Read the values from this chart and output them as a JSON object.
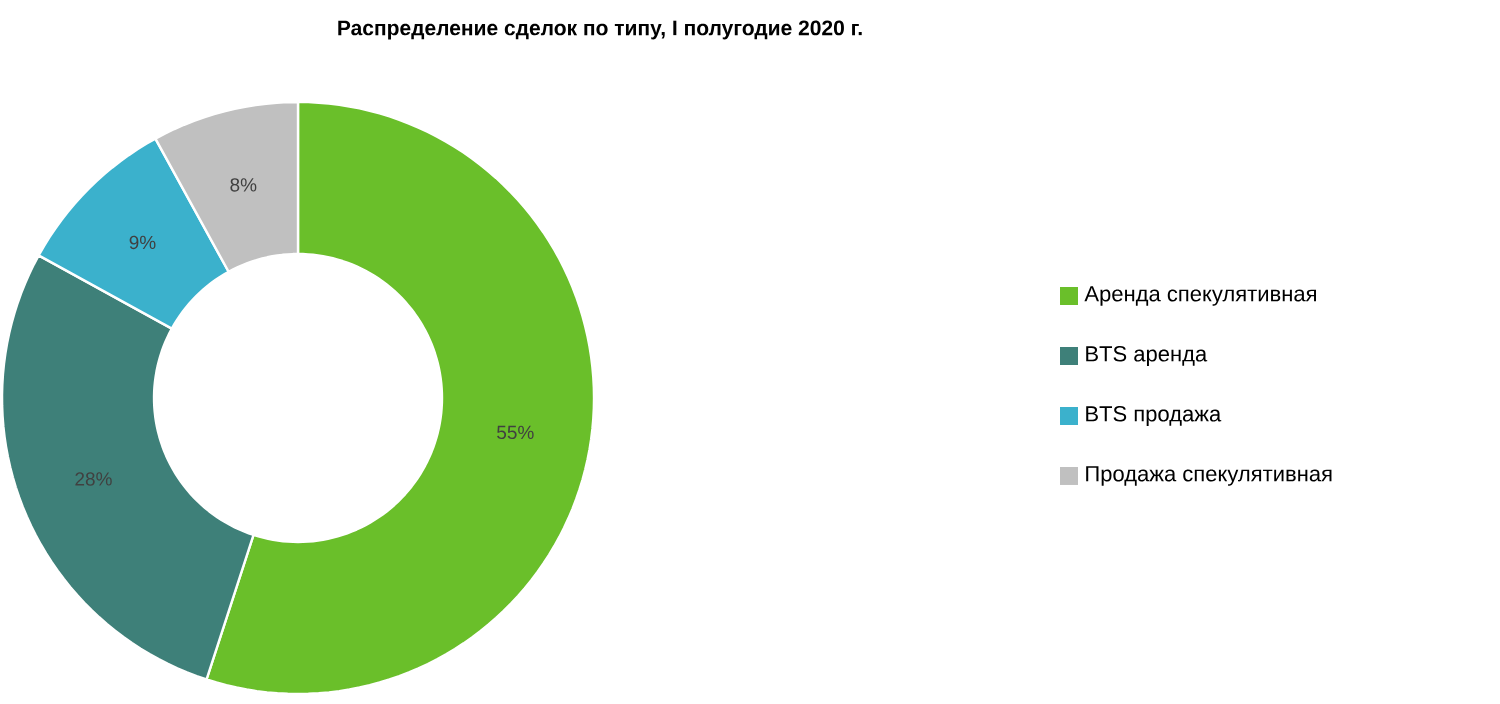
{
  "chart_data": {
    "type": "donut",
    "title": "Распределение сделок по типу, I полугодие 2020 г.",
    "categories": [
      "Аренда спекулятивная",
      "BTS аренда",
      "BTS продажа",
      "Продажа спекулятивная"
    ],
    "values": [
      55,
      28,
      9,
      8
    ],
    "value_labels": [
      "55%",
      "28%",
      "9%",
      "8%"
    ],
    "colors": [
      "#6abf2a",
      "#3e8079",
      "#3bb1cc",
      "#c0c0c0"
    ],
    "legend": "right"
  }
}
